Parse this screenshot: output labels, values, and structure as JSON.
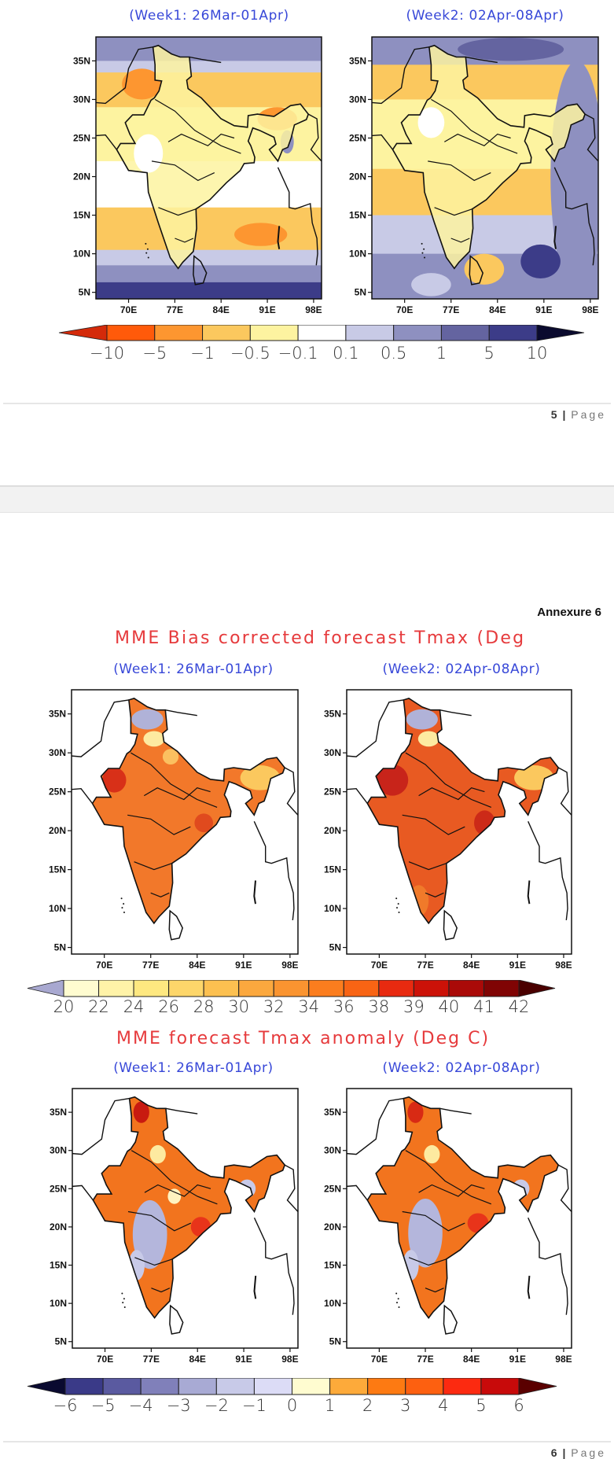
{
  "axes": {
    "lat_ticks": [
      "35N",
      "30N",
      "25N",
      "20N",
      "15N",
      "10N",
      "5N"
    ],
    "lon_ticks": [
      "70E",
      "77E",
      "84E",
      "91E",
      "98E"
    ]
  },
  "page5": {
    "panels": [
      {
        "title": "(Week1: 26Mar-01Apr)"
      },
      {
        "title": "(Week2: 02Apr-08Apr)"
      }
    ],
    "colorbar": {
      "labels": [
        "−10",
        "−5",
        "−1",
        "−0.5",
        "−0.1",
        "0.1",
        "0.5",
        "1",
        "5",
        "10"
      ],
      "colors": [
        "#d42a0a",
        "#ff5a0a",
        "#fd9630",
        "#fbc85e",
        "#fdf3a0",
        "#ffffff",
        "#c8cae6",
        "#8e90c0",
        "#6464a0",
        "#3c3c88",
        "#0a0a2e"
      ]
    },
    "footer": {
      "page_num": "5",
      "sep": "|",
      "page_word": "Page"
    }
  },
  "page6": {
    "annexure": "Annexure 6",
    "bias": {
      "title": "MME Bias corrected forecast Tmax (Deg",
      "panels": [
        {
          "title": "(Week1: 26Mar-01Apr)"
        },
        {
          "title": "(Week2: 02Apr-08Apr)"
        }
      ],
      "colorbar": {
        "labels": [
          "20",
          "22",
          "24",
          "26",
          "28",
          "30",
          "32",
          "34",
          "36",
          "38",
          "39",
          "40",
          "41",
          "42"
        ],
        "colors": [
          "#a8a8d0",
          "#fffcd0",
          "#fff3a8",
          "#fee880",
          "#fdd66a",
          "#fcc050",
          "#fba83e",
          "#fa9430",
          "#fb7d1e",
          "#f86414",
          "#e82a10",
          "#cc1208",
          "#aa0a08",
          "#800404",
          "#4a0000"
        ]
      }
    },
    "anomaly": {
      "title": "MME forecast Tmax anomaly (Deg C)",
      "panels": [
        {
          "title": "(Week1: 26Mar-01Apr)"
        },
        {
          "title": "(Week2: 02Apr-08Apr)"
        }
      ],
      "colorbar": {
        "labels": [
          "−6",
          "−5",
          "−4",
          "−3",
          "−2",
          "−1",
          "0",
          "1",
          "2",
          "3",
          "4",
          "5",
          "6"
        ],
        "colors": [
          "#0a0a30",
          "#3a3a88",
          "#5a5aa0",
          "#8080ba",
          "#a8aad4",
          "#c8cae8",
          "#dcdcf6",
          "#fffcd0",
          "#fdaa3a",
          "#fd7a12",
          "#fd6010",
          "#fc2a10",
          "#c80a0a",
          "#5a0000"
        ]
      }
    },
    "footer": {
      "page_num": "6",
      "sep": "|",
      "page_word": "Page"
    }
  }
}
